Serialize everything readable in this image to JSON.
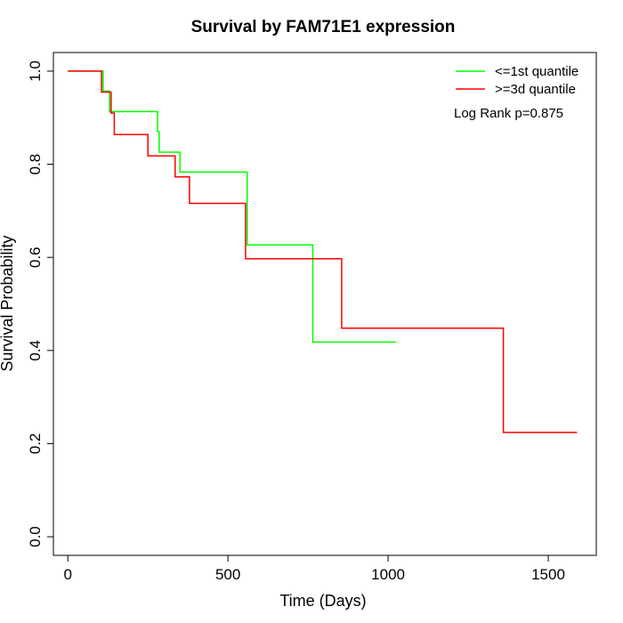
{
  "chart_data": {
    "type": "line",
    "title": "Survival by FAM71E1 expression",
    "xlabel": "Time (Days)",
    "ylabel": "Survival Probability",
    "xlim": [
      -45,
      1650
    ],
    "ylim": [
      -0.04,
      1.04
    ],
    "xticks": [
      0,
      500,
      1000,
      1500
    ],
    "xtick_labels": [
      "0",
      "500",
      "1000",
      "1500"
    ],
    "yticks": [
      0.0,
      0.2,
      0.4,
      0.6,
      0.8,
      1.0
    ],
    "ytick_labels": [
      "0.0",
      "0.2",
      "0.4",
      "0.6",
      "0.8",
      "1.0"
    ],
    "grid": false,
    "legend_position": "top-right",
    "annotation": "Log Rank p=0.875",
    "series": [
      {
        "name": "<=1st quantile",
        "color": "#00ff00",
        "step": true,
        "points": [
          [
            0,
            1.0
          ],
          [
            110,
            1.0
          ],
          [
            110,
            0.957
          ],
          [
            130,
            0.957
          ],
          [
            130,
            0.913
          ],
          [
            280,
            0.913
          ],
          [
            280,
            0.87
          ],
          [
            285,
            0.87
          ],
          [
            285,
            0.826
          ],
          [
            350,
            0.826
          ],
          [
            350,
            0.783
          ],
          [
            560,
            0.783
          ],
          [
            560,
            0.627
          ],
          [
            765,
            0.627
          ],
          [
            765,
            0.418
          ],
          [
            1025,
            0.418
          ]
        ]
      },
      {
        "name": ">=3d quantile",
        "color": "#ff0000",
        "step": true,
        "points": [
          [
            0,
            1.0
          ],
          [
            105,
            1.0
          ],
          [
            105,
            0.955
          ],
          [
            135,
            0.955
          ],
          [
            135,
            0.91
          ],
          [
            145,
            0.91
          ],
          [
            145,
            0.864
          ],
          [
            250,
            0.864
          ],
          [
            250,
            0.818
          ],
          [
            335,
            0.818
          ],
          [
            335,
            0.773
          ],
          [
            380,
            0.773
          ],
          [
            380,
            0.716
          ],
          [
            555,
            0.716
          ],
          [
            555,
            0.597
          ],
          [
            855,
            0.597
          ],
          [
            855,
            0.448
          ],
          [
            1360,
            0.448
          ],
          [
            1360,
            0.224
          ],
          [
            1590,
            0.224
          ]
        ]
      }
    ]
  }
}
